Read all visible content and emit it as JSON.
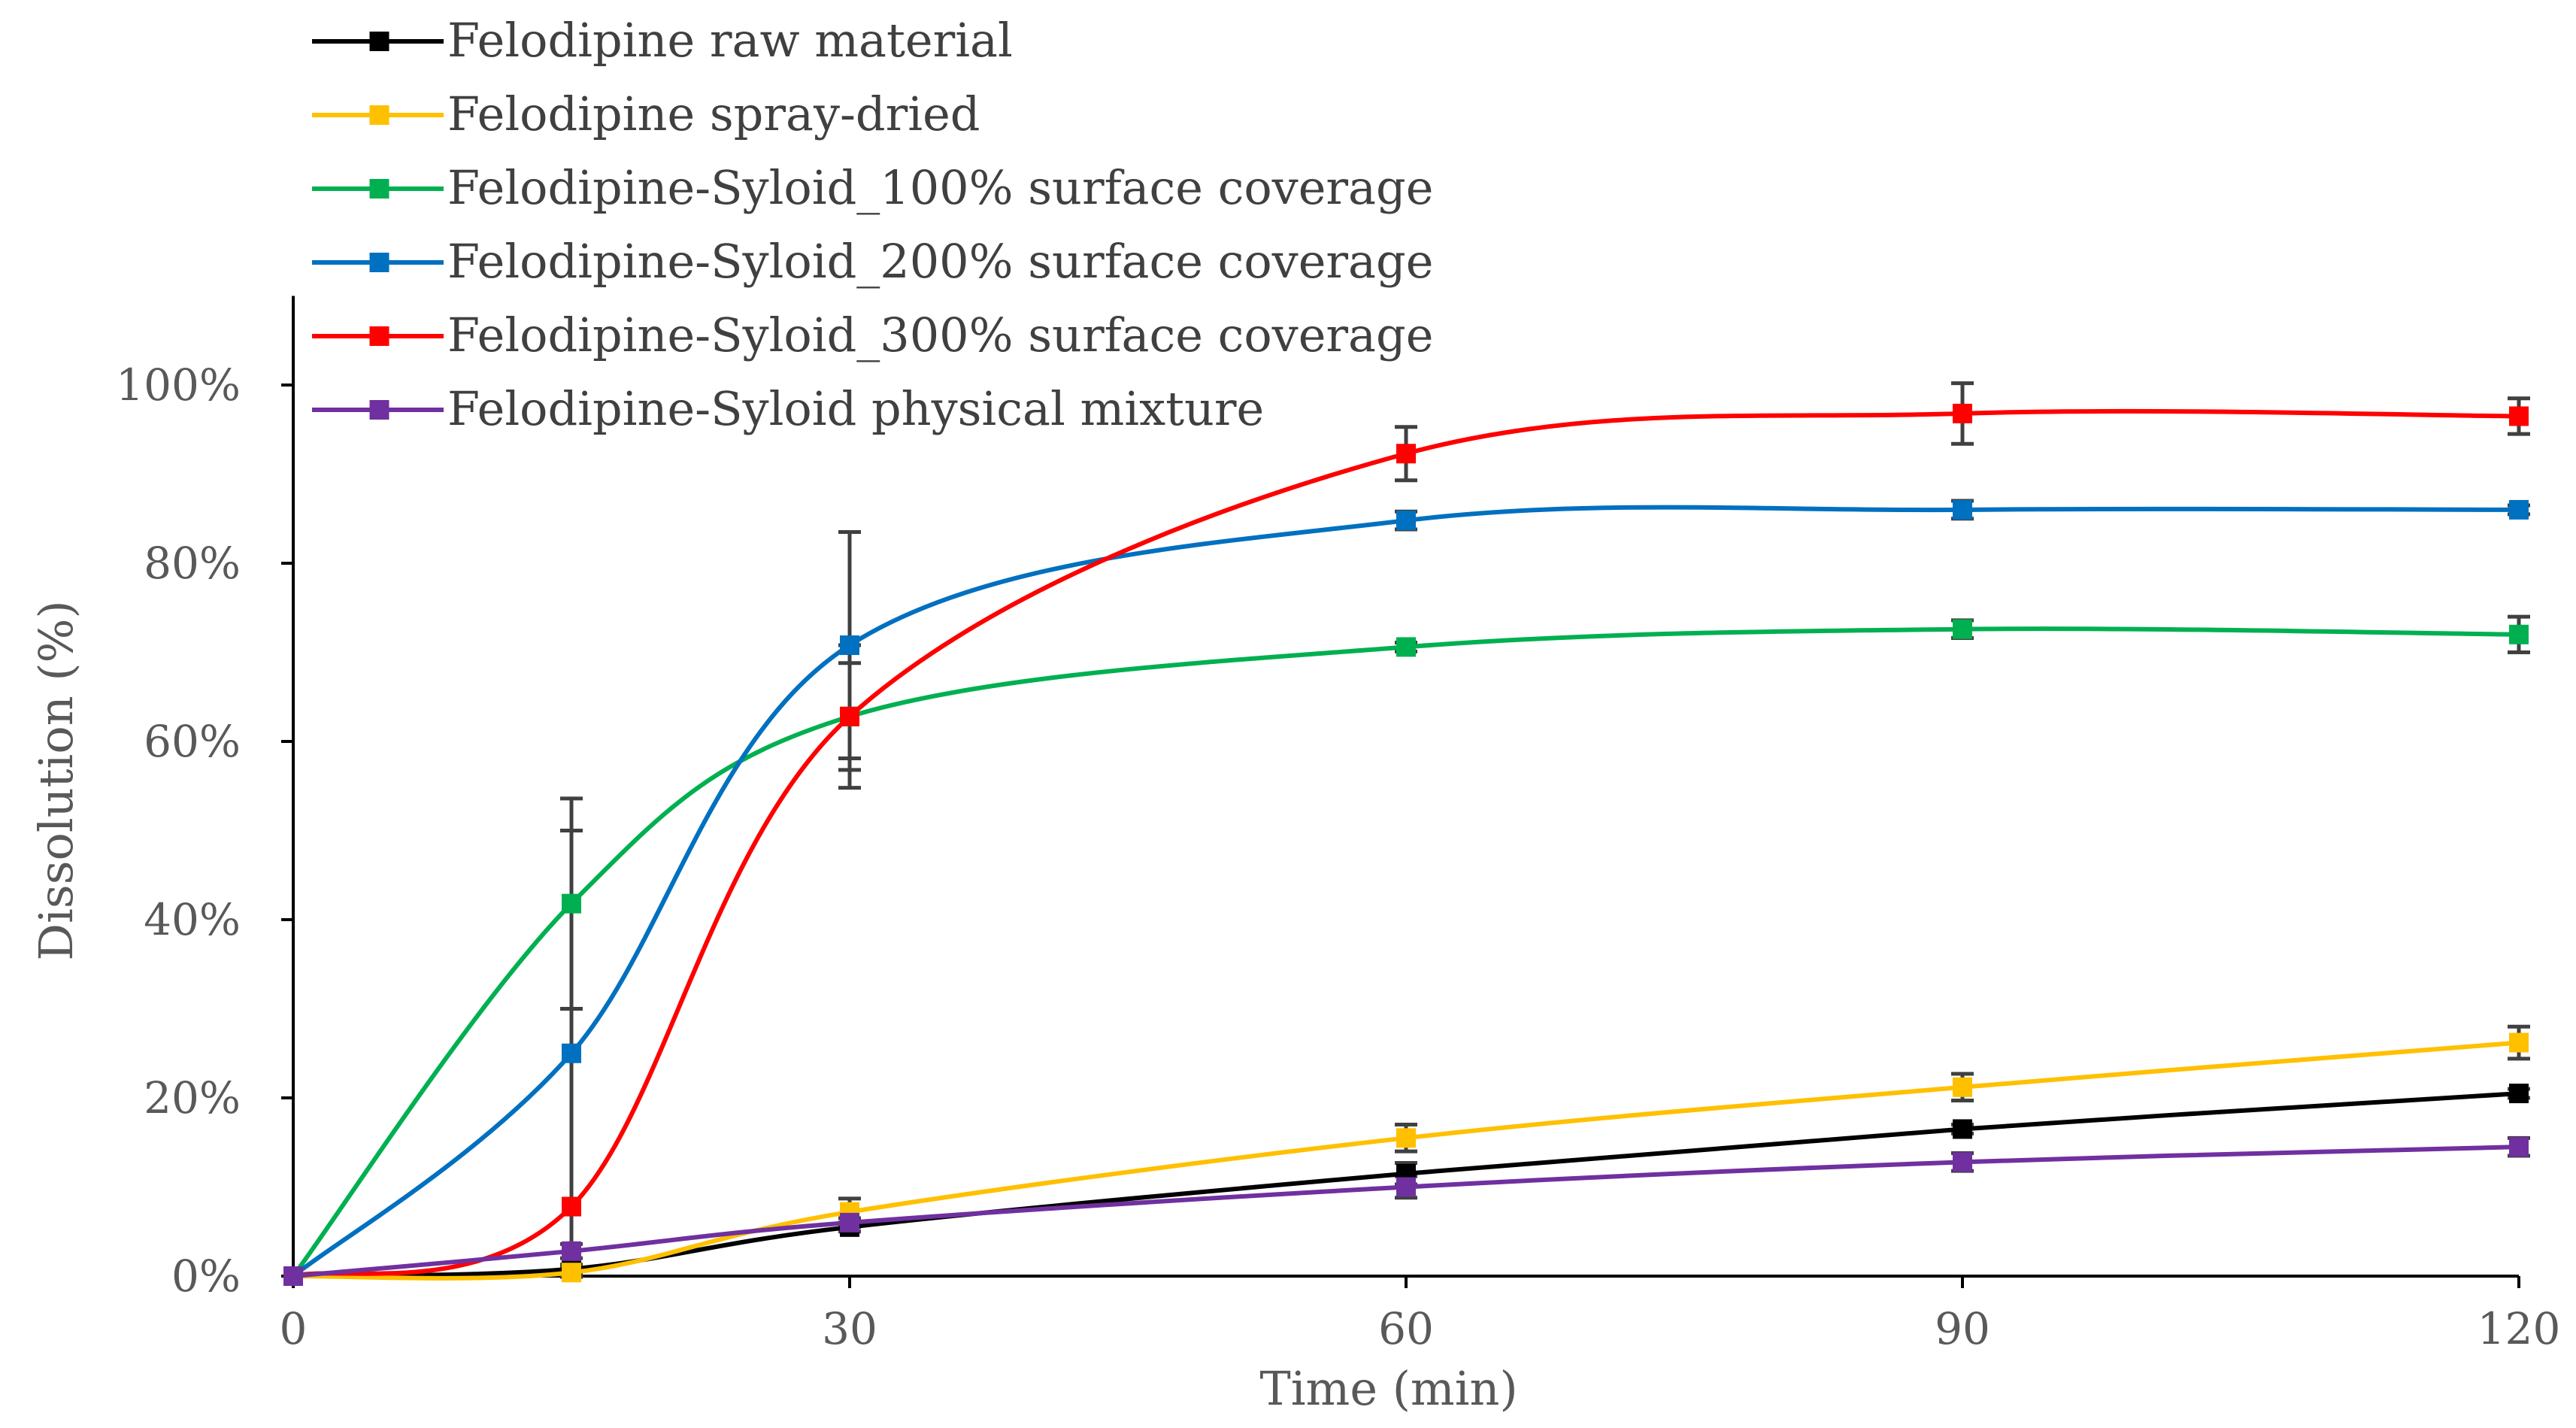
{
  "chart_data": {
    "type": "line",
    "title": "",
    "xlabel": "Time (min)",
    "ylabel": "Dissolution (%)",
    "x": [
      0,
      15,
      30,
      60,
      90,
      120
    ],
    "xlim": [
      0,
      120
    ],
    "ylim": [
      0,
      110
    ],
    "xticks": [
      0,
      30,
      60,
      90,
      120
    ],
    "xtick_labels": [
      "0",
      "30",
      "60",
      "90",
      "120"
    ],
    "yticks": [
      0,
      20,
      40,
      60,
      80,
      100
    ],
    "ytick_labels": [
      "0%",
      "20%",
      "40%",
      "60%",
      "80%",
      "100%"
    ],
    "legend_position": "top-left",
    "series": [
      {
        "name": "Felodipine raw material",
        "color": "#000000",
        "values": [
          0,
          0.8,
          5.5,
          11.5,
          16.5,
          20.5
        ],
        "errors": [
          0,
          0.5,
          0.5,
          1.2,
          0.5,
          0.5
        ]
      },
      {
        "name": "Felodipine spray-dried",
        "color": "#FFC000",
        "values": [
          0,
          0.4,
          7.2,
          15.5,
          21.2,
          26.2
        ],
        "errors": [
          0,
          0.5,
          1.5,
          1.5,
          1.5,
          1.8
        ]
      },
      {
        "name": "Felodipine-Syloid_100% surface coverage",
        "color": "#00B050",
        "values": [
          0,
          41.8,
          62.8,
          70.6,
          72.6,
          72.0
        ],
        "errors": [
          0,
          11.8,
          6.0,
          0.5,
          1.0,
          2.0
        ]
      },
      {
        "name": "Felodipine-Syloid_200% surface coverage",
        "color": "#0070C0",
        "values": [
          0,
          25.0,
          70.8,
          84.8,
          86.0,
          86.0
        ],
        "errors": [
          0,
          25.0,
          12.7,
          1.0,
          1.0,
          0.5
        ]
      },
      {
        "name": "Felodipine-Syloid_300% surface coverage",
        "color": "#FF0000",
        "values": [
          0,
          7.8,
          62.8,
          92.3,
          96.8,
          96.5
        ],
        "errors": [
          0,
          0,
          8.0,
          3.0,
          3.4,
          2.0
        ]
      },
      {
        "name": "Felodipine-Syloid physical mixture",
        "color": "#7030A0",
        "values": [
          0,
          2.8,
          6.0,
          10.0,
          12.8,
          14.5
        ],
        "errors": [
          0,
          0.8,
          0.5,
          1.2,
          1.0,
          1.0
        ]
      }
    ]
  }
}
